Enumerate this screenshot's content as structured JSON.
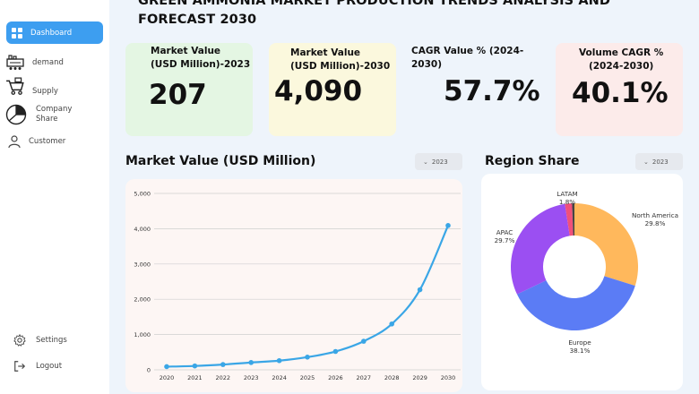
{
  "sidebar": {
    "items": [
      {
        "label": "Dashboard",
        "icon": "dashboard-grid-icon",
        "active": true
      },
      {
        "label": "demand",
        "icon": "factory-icon"
      },
      {
        "label": "Supply",
        "icon": "supply-cart-icon"
      },
      {
        "label": "Company\nShare",
        "icon": "pie-share-icon"
      },
      {
        "label": "Customer",
        "icon": "user-icon"
      },
      {
        "label": "Settings",
        "icon": "gear-icon"
      },
      {
        "label": "Logout",
        "icon": "logout-icon"
      }
    ]
  },
  "header": {
    "title": "GREEN AMMONIA MARKET PRODUCTION TRENDS ANALYSIS AND FORECAST 2030"
  },
  "kpis": [
    {
      "label": "Market Value\n(USD Million)-2023",
      "value": "207",
      "color": "#e4f6e3"
    },
    {
      "label": "Market Value\n(USD Million)-2030",
      "value": "4,090",
      "color": "#fbf8dd"
    },
    {
      "label": "CAGR  Value % (2024-2030)",
      "value": "57.7%",
      "color": "#eef4fb"
    },
    {
      "label": "Volume CAGR  %\n(2024-2030)",
      "value": "40.1%",
      "color": "#fcebea"
    }
  ],
  "market_value_section": {
    "title": "Market Value (USD Million)",
    "year_filter": "2023"
  },
  "region_section": {
    "title": "Region Share",
    "year_filter": "2023"
  },
  "chart_data": [
    {
      "type": "line",
      "title": "Market Value (USD Million)",
      "x": [
        "2020",
        "2021",
        "2022",
        "2023",
        "2024",
        "2025",
        "2026",
        "2027",
        "2028",
        "2029",
        "2030"
      ],
      "series": [
        {
          "values": [
            90,
            110,
            150,
            207,
            260,
            360,
            520,
            810,
            1300,
            2270,
            4090
          ]
        }
      ],
      "yticks": [
        "0",
        "1,000",
        "2,000",
        "3,000",
        "4,000",
        "5,000"
      ],
      "ylim": [
        0,
        5000
      ],
      "grid": true,
      "color": "#3aa6e6"
    },
    {
      "type": "pie",
      "title": "Region Share",
      "slices": [
        {
          "name": "North America",
          "label": "North America",
          "pct_label": "29.8%",
          "value": 29.8,
          "color": "#ffb85c"
        },
        {
          "name": "Europe",
          "label": "Europe",
          "pct_label": "38.1%",
          "value": 38.1,
          "color": "#5b7cf5"
        },
        {
          "name": "APAC",
          "label": "APAC",
          "pct_label": "29.7%",
          "value": 29.7,
          "color": "#9b4ff2"
        },
        {
          "name": "LATAM",
          "label": "LATAM",
          "pct_label": "1.8%",
          "value": 1.8,
          "color": "#f0507a"
        }
      ],
      "extra_slice_color": "#444444",
      "donut": true
    }
  ]
}
